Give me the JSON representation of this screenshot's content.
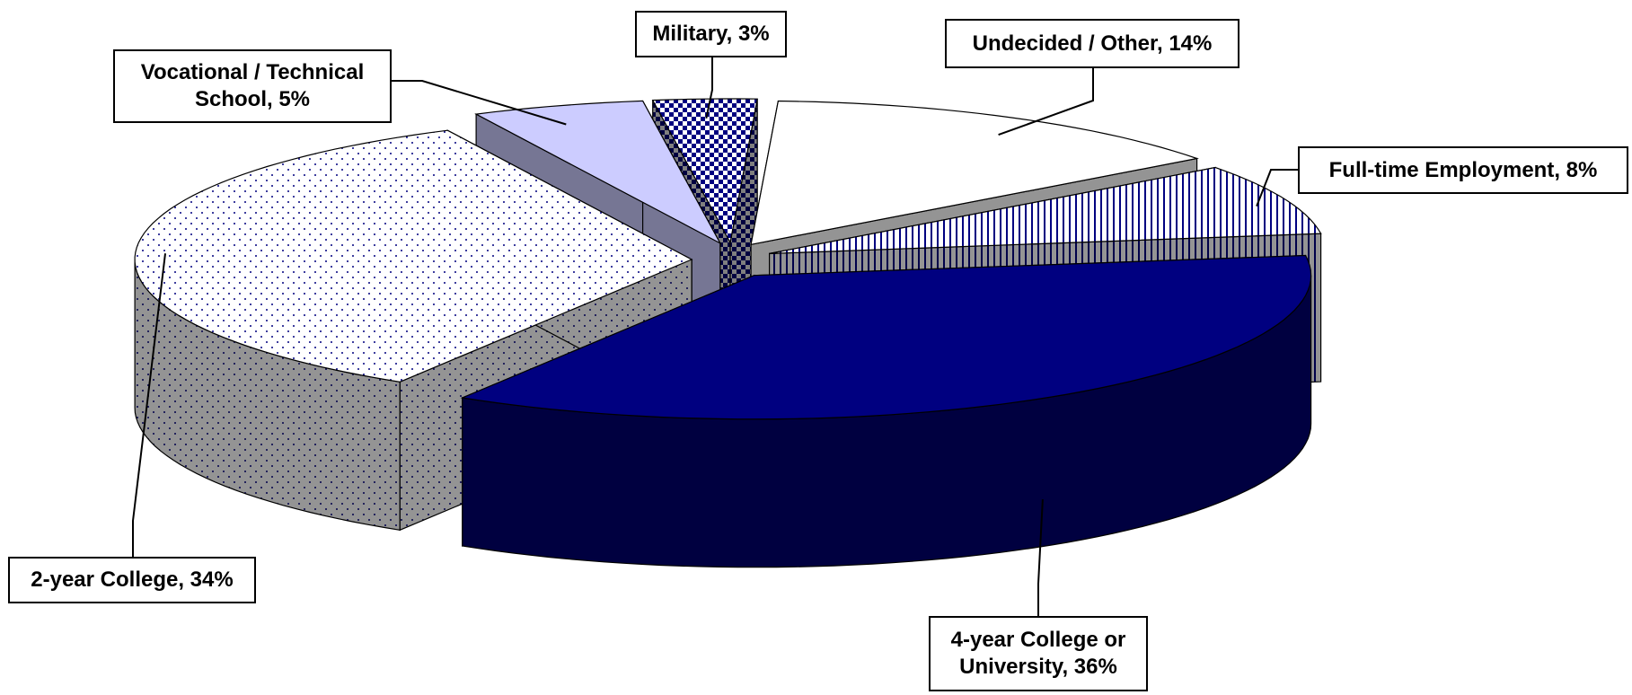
{
  "chart_data": {
    "type": "pie3d",
    "categories": [
      "4-year College or University, 36%",
      "2-year College, 34%",
      "Vocational / Technical School, 5%",
      "Military, 3%",
      "Undecided / Other, 14%",
      "Full-time Employment, 8%"
    ],
    "values": [
      36,
      34,
      5,
      3,
      14,
      8
    ],
    "colors": [
      "#000080",
      "#ffffff",
      "#ccccff",
      "#000080",
      "#ffffff",
      "#ffffff"
    ],
    "patterns": [
      "solid",
      "dots",
      "solid",
      "checker",
      "solid",
      "vertical-lines"
    ]
  }
}
